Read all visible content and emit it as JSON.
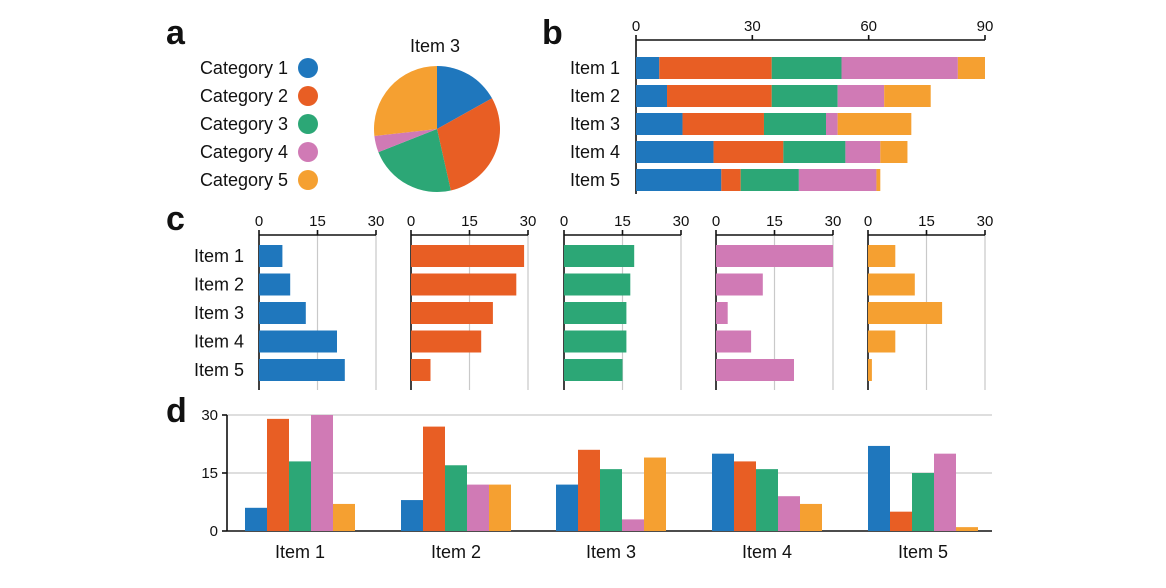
{
  "panel_letters": [
    "a",
    "b",
    "c",
    "d"
  ],
  "colors": {
    "Category 1": "#1f77bd",
    "Category 2": "#e85e24",
    "Category 3": "#2ca776",
    "Category 4": "#d07ab5",
    "Category 5": "#f5a031"
  },
  "chart_data": [
    {
      "panel": "a",
      "type": "pie",
      "title": "Item 3",
      "legend": [
        "Category 1",
        "Category 2",
        "Category 3",
        "Category 4",
        "Category 5"
      ],
      "legend_placement": "left",
      "values": [
        12,
        21,
        16,
        3,
        19
      ]
    },
    {
      "panel": "b",
      "type": "bar",
      "orientation": "horizontal-stacked",
      "categories": [
        "Item 1",
        "Item 2",
        "Item 3",
        "Item 4",
        "Item 5"
      ],
      "xlim": [
        0,
        90
      ],
      "xticks": [
        0,
        30,
        60,
        90
      ],
      "series": [
        {
          "name": "Category 1",
          "values": [
            6,
            8,
            12,
            20,
            22
          ]
        },
        {
          "name": "Category 2",
          "values": [
            29,
            27,
            21,
            18,
            5
          ]
        },
        {
          "name": "Category 3",
          "values": [
            18,
            17,
            16,
            16,
            15
          ]
        },
        {
          "name": "Category 4",
          "values": [
            30,
            12,
            3,
            9,
            20
          ]
        },
        {
          "name": "Category 5",
          "values": [
            7,
            12,
            19,
            7,
            1
          ]
        }
      ]
    },
    {
      "panel": "c",
      "type": "bar",
      "orientation": "horizontal-small-multiples",
      "categories": [
        "Item 1",
        "Item 2",
        "Item 3",
        "Item 4",
        "Item 5"
      ],
      "xlim": [
        0,
        30
      ],
      "xticks": [
        0,
        15,
        30
      ],
      "grid": true,
      "series": [
        {
          "name": "Category 1",
          "values": [
            6,
            8,
            12,
            20,
            22
          ]
        },
        {
          "name": "Category 2",
          "values": [
            29,
            27,
            21,
            18,
            5
          ]
        },
        {
          "name": "Category 3",
          "values": [
            18,
            17,
            16,
            16,
            15
          ]
        },
        {
          "name": "Category 4",
          "values": [
            30,
            12,
            3,
            9,
            20
          ]
        },
        {
          "name": "Category 5",
          "values": [
            7,
            12,
            19,
            7,
            1
          ]
        }
      ]
    },
    {
      "panel": "d",
      "type": "bar",
      "orientation": "vertical-grouped",
      "categories": [
        "Item 1",
        "Item 2",
        "Item 3",
        "Item 4",
        "Item 5"
      ],
      "ylim": [
        0,
        30
      ],
      "yticks": [
        0,
        15,
        30
      ],
      "grid": true,
      "series": [
        {
          "name": "Category 1",
          "values": [
            6,
            8,
            12,
            20,
            22
          ]
        },
        {
          "name": "Category 2",
          "values": [
            29,
            27,
            21,
            18,
            5
          ]
        },
        {
          "name": "Category 3",
          "values": [
            18,
            17,
            16,
            16,
            15
          ]
        },
        {
          "name": "Category 4",
          "values": [
            30,
            12,
            3,
            9,
            20
          ]
        },
        {
          "name": "Category 5",
          "values": [
            7,
            12,
            19,
            7,
            1
          ]
        }
      ]
    }
  ]
}
